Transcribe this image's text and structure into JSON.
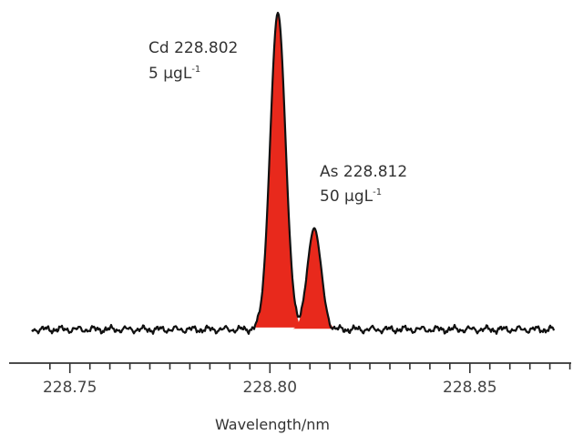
{
  "chart_data": {
    "type": "line",
    "xlabel": "Wavelength/nm",
    "ylabel": "",
    "xlim": [
      228.7405,
      228.871
    ],
    "x_ticks": [
      "228.75",
      "228.80",
      "228.85"
    ],
    "grid": false,
    "series": [
      {
        "name": "",
        "peaks": [
          {
            "center": 228.802,
            "relative_height": 1.0
          },
          {
            "center": 228.8111,
            "relative_height": 0.32
          }
        ]
      }
    ],
    "annotations": [
      {
        "element": "Cd 228.802",
        "concentration": "5 μgL",
        "unit_power": "-1"
      },
      {
        "element": "As 228.812",
        "concentration": "50 μgL",
        "unit_power": "-1"
      }
    ],
    "colors": {
      "peak_fill": "#e8291c",
      "line": "#111111",
      "axis": "#333333"
    }
  }
}
